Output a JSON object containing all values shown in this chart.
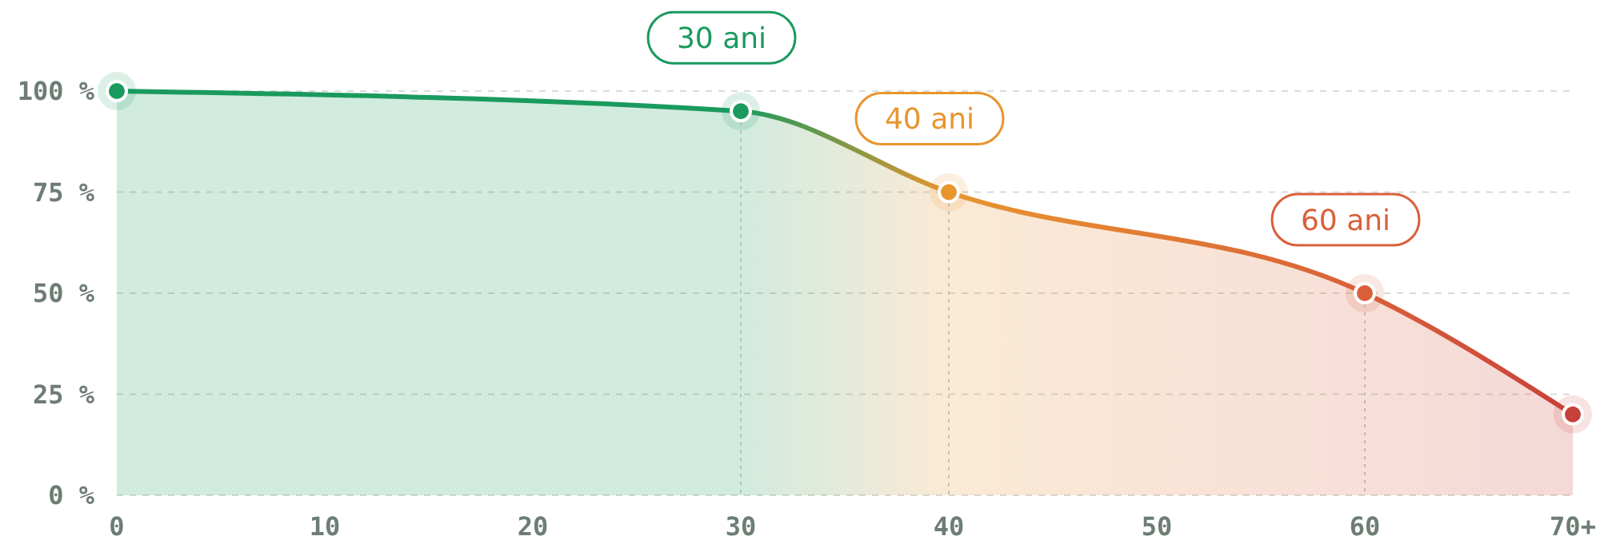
{
  "chart_data": {
    "type": "area",
    "x": [
      0,
      30,
      40,
      60,
      70
    ],
    "series": [
      {
        "values": [
          100,
          95,
          75,
          50,
          20
        ],
        "colors": [
          "#1a9a5e",
          "#1a9a5e",
          "#e8952e",
          "#d9603a",
          "#c8403a"
        ]
      }
    ],
    "xlim": [
      0,
      70
    ],
    "xticks": [
      0,
      10,
      20,
      30,
      40,
      50,
      60,
      {
        "value": 70,
        "label": "70+"
      }
    ],
    "ylim": [
      0,
      100
    ],
    "yticks": [
      {
        "value": 0,
        "label": "0 %"
      },
      {
        "value": 25,
        "label": "25 %"
      },
      {
        "value": 50,
        "label": "50 %"
      },
      {
        "value": 75,
        "label": "75 %"
      },
      {
        "value": 100,
        "label": "100 %"
      }
    ],
    "grid": "y",
    "marker": "circle",
    "line_style": "solid",
    "ref_lines": [
      {
        "axis": "x",
        "value": 30,
        "line_style": "dotted"
      },
      {
        "axis": "x",
        "value": 40,
        "line_style": "dotted"
      },
      {
        "axis": "x",
        "value": 60,
        "line_style": "dotted"
      }
    ],
    "annotations": [
      {
        "text": "30 ani",
        "x": 30,
        "y": 95
      },
      {
        "text": "40 ani",
        "x": 40,
        "y": 75
      },
      {
        "text": "60 ani",
        "x": 60,
        "y": 50
      }
    ]
  }
}
